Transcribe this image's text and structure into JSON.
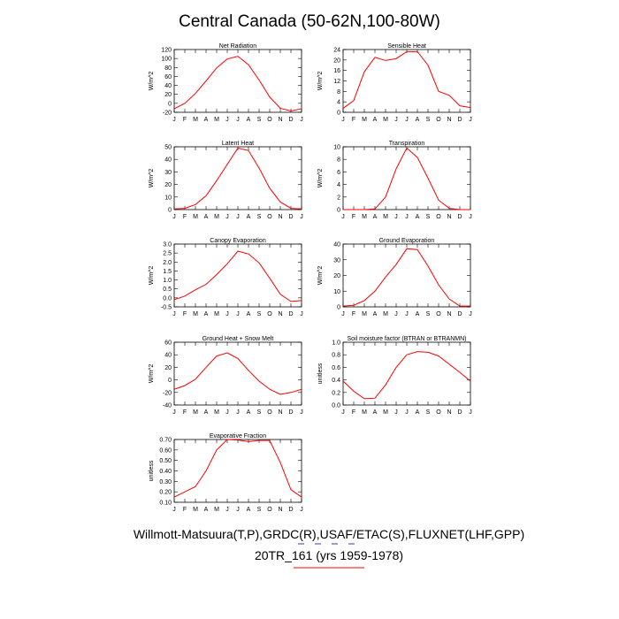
{
  "figure": {
    "title": "Central Canada (50-62N,100-80W)",
    "footer_line1": "Willmott-Matsuura(T,P),GRDC(R),USAF/ETAC(S),FLUXNET(LHF,GPP)",
    "footer_line2": "20TR_161 (yrs 1959-1978)",
    "line_color": "#ff0000",
    "footer_rule_color_red": "#ff0000",
    "footer_rule_color_blue": "#3333cc"
  },
  "chart_data": [
    {
      "type": "line",
      "title": "Net Radiation",
      "ylabel": "W/m^2",
      "x": [
        "J",
        "F",
        "M",
        "A",
        "M",
        "J",
        "J",
        "A",
        "S",
        "O",
        "N",
        "D",
        "J"
      ],
      "values": [
        -12,
        0,
        22,
        50,
        79,
        99,
        105,
        86,
        52,
        14,
        -11,
        -17,
        -12
      ],
      "ylim": [
        -20,
        120
      ],
      "yticks": [
        -20,
        0,
        20,
        40,
        60,
        80,
        100,
        120
      ],
      "ytick_labels": [
        "-20",
        "0",
        "20",
        "40",
        "60",
        "80",
        "100",
        "120"
      ]
    },
    {
      "type": "line",
      "title": "Sensible Heat",
      "ylabel": "W/m^2",
      "x": [
        "J",
        "F",
        "M",
        "A",
        "M",
        "J",
        "J",
        "A",
        "S",
        "O",
        "N",
        "D",
        "J"
      ],
      "values": [
        1.5,
        4.5,
        15.5,
        21,
        19.8,
        20.5,
        23.2,
        23.2,
        18,
        8,
        6.5,
        2.5,
        1.8
      ],
      "ylim": [
        0,
        24
      ],
      "yticks": [
        0,
        4,
        8,
        12,
        16,
        20,
        24
      ],
      "ytick_labels": [
        "0",
        "4",
        "8",
        "12",
        "16",
        "20",
        "24"
      ]
    },
    {
      "type": "line",
      "title": "Latent Heat",
      "ylabel": "W/m^2",
      "x": [
        "J",
        "F",
        "M",
        "A",
        "M",
        "J",
        "J",
        "A",
        "S",
        "O",
        "N",
        "D",
        "J"
      ],
      "values": [
        0.5,
        1,
        4,
        11,
        23,
        36,
        49,
        47,
        33,
        17,
        6,
        1,
        0.5
      ],
      "ylim": [
        0,
        50
      ],
      "yticks": [
        0,
        10,
        20,
        30,
        40,
        50
      ],
      "ytick_labels": [
        "0",
        "10",
        "20",
        "30",
        "40",
        "50"
      ]
    },
    {
      "type": "line",
      "title": "Transpiration",
      "ylabel": "W/m^2",
      "x": [
        "J",
        "F",
        "M",
        "A",
        "M",
        "J",
        "J",
        "A",
        "S",
        "O",
        "N",
        "D",
        "J"
      ],
      "values": [
        0,
        0,
        0,
        0.1,
        2,
        6.5,
        9.8,
        8.3,
        5,
        1.5,
        0.2,
        0,
        0
      ],
      "ylim": [
        0,
        10
      ],
      "yticks": [
        0,
        2,
        4,
        6,
        8,
        10
      ],
      "ytick_labels": [
        "0",
        "2",
        "4",
        "6",
        "8",
        "10"
      ]
    },
    {
      "type": "line",
      "title": "Canopy Evaporation",
      "ylabel": "W/m^2",
      "x": [
        "J",
        "F",
        "M",
        "A",
        "M",
        "J",
        "J",
        "A",
        "S",
        "O",
        "N",
        "D",
        "J"
      ],
      "values": [
        -0.1,
        0.1,
        0.45,
        0.75,
        1.3,
        1.9,
        2.6,
        2.45,
        1.95,
        1.1,
        0.2,
        -0.2,
        -0.15
      ],
      "ylim": [
        -0.5,
        3.0
      ],
      "yticks": [
        -0.5,
        0.0,
        0.5,
        1.0,
        1.5,
        2.0,
        2.5,
        3.0
      ],
      "ytick_labels": [
        "-0.5",
        "0.0",
        "0.5",
        "1.0",
        "1.5",
        "2.0",
        "2.5",
        "3.0"
      ]
    },
    {
      "type": "line",
      "title": "Ground Evaporation",
      "ylabel": "W/m^2",
      "x": [
        "J",
        "F",
        "M",
        "A",
        "M",
        "J",
        "J",
        "A",
        "S",
        "O",
        "N",
        "D",
        "J"
      ],
      "values": [
        0.5,
        1,
        4,
        10,
        19,
        27,
        37,
        36.5,
        26,
        14,
        5,
        0.5,
        0.5
      ],
      "ylim": [
        0,
        40
      ],
      "yticks": [
        0,
        10,
        20,
        30,
        40
      ],
      "ytick_labels": [
        "0",
        "10",
        "20",
        "30",
        "40"
      ]
    },
    {
      "type": "line",
      "title": "Ground Heat + Snow Melt",
      "ylabel": "W/m^2",
      "x": [
        "J",
        "F",
        "M",
        "A",
        "M",
        "J",
        "J",
        "A",
        "S",
        "O",
        "N",
        "D",
        "J"
      ],
      "values": [
        -15,
        -9,
        1,
        20,
        38,
        43,
        34,
        15,
        -2,
        -15,
        -23,
        -20,
        -15
      ],
      "ylim": [
        -40,
        60
      ],
      "yticks": [
        -40,
        -20,
        0,
        20,
        40,
        60
      ],
      "ytick_labels": [
        "-40",
        "-20",
        "0",
        "20",
        "40",
        "60"
      ]
    },
    {
      "type": "line",
      "title": "Soil moisture factor (BTRAN or BTRANMN)",
      "ylabel": "unitless",
      "x": [
        "J",
        "F",
        "M",
        "A",
        "M",
        "J",
        "J",
        "A",
        "S",
        "O",
        "N",
        "D",
        "J"
      ],
      "values": [
        0.38,
        0.22,
        0.1,
        0.11,
        0.32,
        0.6,
        0.8,
        0.85,
        0.84,
        0.78,
        0.65,
        0.52,
        0.38
      ],
      "ylim": [
        0,
        1.0
      ],
      "yticks": [
        0,
        0.2,
        0.4,
        0.6,
        0.8,
        1.0
      ],
      "ytick_labels": [
        "0.0",
        "0.2",
        "0.4",
        "0.6",
        "0.8",
        "1.0"
      ]
    },
    {
      "type": "line",
      "title": "Evaporative Fraction",
      "ylabel": "unitless",
      "x": [
        "J",
        "F",
        "M",
        "A",
        "M",
        "J",
        "J",
        "A",
        "S",
        "O",
        "N",
        "D",
        "J"
      ],
      "values": [
        0.15,
        0.2,
        0.25,
        0.4,
        0.6,
        0.7,
        0.695,
        0.68,
        0.69,
        0.69,
        0.48,
        0.22,
        0.15
      ],
      "ylim": [
        0.1,
        0.7
      ],
      "yticks": [
        0.1,
        0.2,
        0.3,
        0.4,
        0.5,
        0.6,
        0.7
      ],
      "ytick_labels": [
        "0.10",
        "0.20",
        "0.30",
        "0.40",
        "0.50",
        "0.60",
        "0.70"
      ]
    }
  ]
}
